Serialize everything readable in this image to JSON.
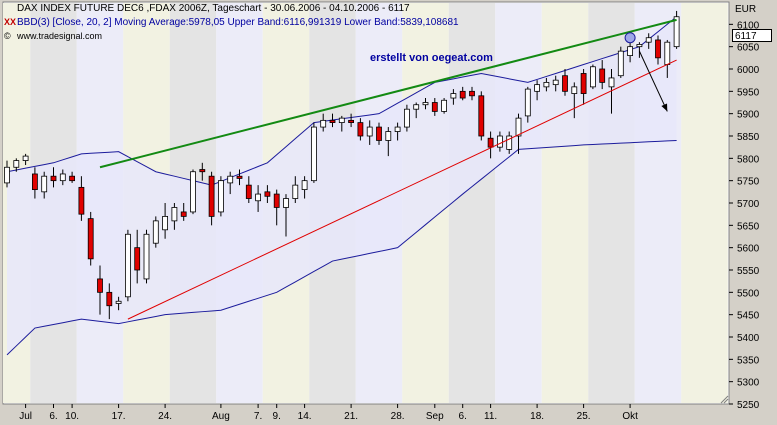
{
  "header": {
    "title": "DAX INDEX FUTURE DEC6 ,FDAX 2006Z, Tageschart - 30.06.2006 - 04.10.2006 - 6117",
    "indicator_mark": "XX",
    "indicator": "BBD(3) [Close, 20, 2] Moving Average:5978,05 Upper Band:6116,991319 Lower Band:5839,108681",
    "website": "www.tradesignal.com",
    "website_icon": "©"
  },
  "annotation": "erstellt von oegeat.com",
  "currency": "EUR",
  "last_price": "6117",
  "colors": {
    "bg_plot": "#ffffff",
    "band_fill": "#e8e8fa",
    "band_line": "#1c1c9c",
    "up_candle": "#ffffff",
    "down_candle": "#e00000",
    "trend_green": "#138a13",
    "trend_red": "#e00000",
    "arrow": "#000000",
    "stripe_yellow": "#f2f2e2",
    "stripe_gray": "#e4e4e4",
    "stripe_blue": "#ececf8"
  },
  "chart_data": {
    "type": "candlestick",
    "title": "DAX INDEX FUTURE DEC6 ,FDAX 2006Z, Tageschart - 30.06.2006 - 04.10.2006 - 6117",
    "ylabel": "EUR",
    "ylim": [
      5250,
      6150
    ],
    "y_ticks": [
      5250,
      5300,
      5350,
      5400,
      5450,
      5500,
      5550,
      5600,
      5650,
      5700,
      5750,
      5800,
      5850,
      5900,
      5950,
      6000,
      6050,
      6100
    ],
    "x_tick_labels": [
      {
        "label": "Jul",
        "bar": 2
      },
      {
        "label": "6.",
        "bar": 5
      },
      {
        "label": "10.",
        "bar": 7
      },
      {
        "label": "17.",
        "bar": 12
      },
      {
        "label": "24.",
        "bar": 17
      },
      {
        "label": "Aug",
        "bar": 23
      },
      {
        "label": "7.",
        "bar": 27
      },
      {
        "label": "9.",
        "bar": 29
      },
      {
        "label": "14.",
        "bar": 32
      },
      {
        "label": "21.",
        "bar": 37
      },
      {
        "label": "28.",
        "bar": 42
      },
      {
        "label": "Sep",
        "bar": 46
      },
      {
        "label": "6.",
        "bar": 49
      },
      {
        "label": "11.",
        "bar": 52
      },
      {
        "label": "18.",
        "bar": 57
      },
      {
        "label": "25.",
        "bar": 62
      },
      {
        "label": "Okt",
        "bar": 67
      }
    ],
    "grid": false,
    "candles": [
      {
        "o": 5745,
        "h": 5795,
        "l": 5735,
        "c": 5780
      },
      {
        "o": 5780,
        "h": 5800,
        "l": 5770,
        "c": 5795
      },
      {
        "o": 5795,
        "h": 5810,
        "l": 5785,
        "c": 5805
      },
      {
        "o": 5765,
        "h": 5780,
        "l": 5710,
        "c": 5730
      },
      {
        "o": 5725,
        "h": 5770,
        "l": 5710,
        "c": 5760
      },
      {
        "o": 5760,
        "h": 5780,
        "l": 5735,
        "c": 5750
      },
      {
        "o": 5750,
        "h": 5775,
        "l": 5740,
        "c": 5765
      },
      {
        "o": 5760,
        "h": 5770,
        "l": 5745,
        "c": 5750
      },
      {
        "o": 5735,
        "h": 5760,
        "l": 5660,
        "c": 5675
      },
      {
        "o": 5665,
        "h": 5680,
        "l": 5560,
        "c": 5575
      },
      {
        "o": 5530,
        "h": 5560,
        "l": 5450,
        "c": 5500
      },
      {
        "o": 5500,
        "h": 5520,
        "l": 5440,
        "c": 5470
      },
      {
        "o": 5475,
        "h": 5490,
        "l": 5460,
        "c": 5480
      },
      {
        "o": 5490,
        "h": 5640,
        "l": 5480,
        "c": 5630
      },
      {
        "o": 5600,
        "h": 5640,
        "l": 5520,
        "c": 5550
      },
      {
        "o": 5530,
        "h": 5640,
        "l": 5520,
        "c": 5630
      },
      {
        "o": 5610,
        "h": 5670,
        "l": 5600,
        "c": 5660
      },
      {
        "o": 5640,
        "h": 5700,
        "l": 5620,
        "c": 5670
      },
      {
        "o": 5660,
        "h": 5700,
        "l": 5640,
        "c": 5690
      },
      {
        "o": 5680,
        "h": 5700,
        "l": 5660,
        "c": 5670
      },
      {
        "o": 5680,
        "h": 5775,
        "l": 5675,
        "c": 5770
      },
      {
        "o": 5775,
        "h": 5790,
        "l": 5750,
        "c": 5770
      },
      {
        "o": 5760,
        "h": 5770,
        "l": 5650,
        "c": 5670
      },
      {
        "o": 5680,
        "h": 5760,
        "l": 5670,
        "c": 5750
      },
      {
        "o": 5745,
        "h": 5770,
        "l": 5720,
        "c": 5760
      },
      {
        "o": 5760,
        "h": 5775,
        "l": 5740,
        "c": 5755
      },
      {
        "o": 5740,
        "h": 5760,
        "l": 5700,
        "c": 5710
      },
      {
        "o": 5705,
        "h": 5740,
        "l": 5680,
        "c": 5720
      },
      {
        "o": 5725,
        "h": 5740,
        "l": 5700,
        "c": 5715
      },
      {
        "o": 5720,
        "h": 5730,
        "l": 5650,
        "c": 5690
      },
      {
        "o": 5690,
        "h": 5720,
        "l": 5625,
        "c": 5710
      },
      {
        "o": 5710,
        "h": 5760,
        "l": 5700,
        "c": 5740
      },
      {
        "o": 5730,
        "h": 5760,
        "l": 5710,
        "c": 5750
      },
      {
        "o": 5750,
        "h": 5880,
        "l": 5745,
        "c": 5870
      },
      {
        "o": 5870,
        "h": 5900,
        "l": 5860,
        "c": 5885
      },
      {
        "o": 5885,
        "h": 5900,
        "l": 5870,
        "c": 5880
      },
      {
        "o": 5880,
        "h": 5895,
        "l": 5860,
        "c": 5890
      },
      {
        "o": 5885,
        "h": 5900,
        "l": 5870,
        "c": 5880
      },
      {
        "o": 5880,
        "h": 5890,
        "l": 5840,
        "c": 5850
      },
      {
        "o": 5850,
        "h": 5885,
        "l": 5830,
        "c": 5870
      },
      {
        "o": 5870,
        "h": 5880,
        "l": 5830,
        "c": 5840
      },
      {
        "o": 5840,
        "h": 5870,
        "l": 5805,
        "c": 5860
      },
      {
        "o": 5860,
        "h": 5880,
        "l": 5840,
        "c": 5870
      },
      {
        "o": 5870,
        "h": 5920,
        "l": 5860,
        "c": 5910
      },
      {
        "o": 5910,
        "h": 5925,
        "l": 5890,
        "c": 5920
      },
      {
        "o": 5920,
        "h": 5935,
        "l": 5910,
        "c": 5925
      },
      {
        "o": 5925,
        "h": 5935,
        "l": 5895,
        "c": 5905
      },
      {
        "o": 5905,
        "h": 5935,
        "l": 5900,
        "c": 5930
      },
      {
        "o": 5935,
        "h": 5955,
        "l": 5920,
        "c": 5945
      },
      {
        "o": 5950,
        "h": 5960,
        "l": 5930,
        "c": 5935
      },
      {
        "o": 5950,
        "h": 5960,
        "l": 5930,
        "c": 5940
      },
      {
        "o": 5940,
        "h": 5950,
        "l": 5840,
        "c": 5850
      },
      {
        "o": 5845,
        "h": 5860,
        "l": 5800,
        "c": 5825
      },
      {
        "o": 5825,
        "h": 5860,
        "l": 5815,
        "c": 5850
      },
      {
        "o": 5820,
        "h": 5860,
        "l": 5810,
        "c": 5850
      },
      {
        "o": 5850,
        "h": 5900,
        "l": 5810,
        "c": 5890
      },
      {
        "o": 5895,
        "h": 5960,
        "l": 5880,
        "c": 5955
      },
      {
        "o": 5950,
        "h": 5975,
        "l": 5930,
        "c": 5965
      },
      {
        "o": 5960,
        "h": 5980,
        "l": 5950,
        "c": 5970
      },
      {
        "o": 5965,
        "h": 5985,
        "l": 5950,
        "c": 5975
      },
      {
        "o": 5985,
        "h": 6000,
        "l": 5940,
        "c": 5950
      },
      {
        "o": 5945,
        "h": 5970,
        "l": 5890,
        "c": 5960
      },
      {
        "o": 5990,
        "h": 6000,
        "l": 5920,
        "c": 5945
      },
      {
        "o": 5960,
        "h": 6010,
        "l": 5955,
        "c": 6005
      },
      {
        "o": 6000,
        "h": 6020,
        "l": 5955,
        "c": 5970
      },
      {
        "o": 5960,
        "h": 6000,
        "l": 5900,
        "c": 5980
      },
      {
        "o": 5985,
        "h": 6050,
        "l": 5980,
        "c": 6040
      },
      {
        "o": 6030,
        "h": 6060,
        "l": 6015,
        "c": 6050
      },
      {
        "o": 6050,
        "h": 6060,
        "l": 6025,
        "c": 6055
      },
      {
        "o": 6060,
        "h": 6080,
        "l": 6045,
        "c": 6070
      },
      {
        "o": 6065,
        "h": 6075,
        "l": 6010,
        "c": 6025
      },
      {
        "o": 6010,
        "h": 6065,
        "l": 5980,
        "c": 6060
      },
      {
        "o": 6050,
        "h": 6130,
        "l": 6045,
        "c": 6117
      }
    ],
    "bollinger": {
      "upper": [
        {
          "bar": 0,
          "v": 5770
        },
        {
          "bar": 5,
          "v": 5790
        },
        {
          "bar": 8,
          "v": 5810
        },
        {
          "bar": 12,
          "v": 5815
        },
        {
          "bar": 16,
          "v": 5770
        },
        {
          "bar": 22,
          "v": 5740
        },
        {
          "bar": 28,
          "v": 5790
        },
        {
          "bar": 33,
          "v": 5880
        },
        {
          "bar": 40,
          "v": 5900
        },
        {
          "bar": 46,
          "v": 5970
        },
        {
          "bar": 51,
          "v": 5990
        },
        {
          "bar": 56,
          "v": 5970
        },
        {
          "bar": 62,
          "v": 6010
        },
        {
          "bar": 68,
          "v": 6050
        },
        {
          "bar": 72,
          "v": 6117
        }
      ],
      "lower": [
        {
          "bar": 0,
          "v": 5360
        },
        {
          "bar": 3,
          "v": 5420
        },
        {
          "bar": 8,
          "v": 5440
        },
        {
          "bar": 12,
          "v": 5430
        },
        {
          "bar": 17,
          "v": 5450
        },
        {
          "bar": 23,
          "v": 5460
        },
        {
          "bar": 29,
          "v": 5500
        },
        {
          "bar": 35,
          "v": 5570
        },
        {
          "bar": 42,
          "v": 5600
        },
        {
          "bar": 49,
          "v": 5720
        },
        {
          "bar": 55,
          "v": 5820
        },
        {
          "bar": 62,
          "v": 5830
        },
        {
          "bar": 67,
          "v": 5835
        },
        {
          "bar": 72,
          "v": 5840
        }
      ]
    },
    "trendlines": [
      {
        "name": "green",
        "from": {
          "bar": 10,
          "v": 5780
        },
        "to": {
          "bar": 72,
          "v": 6110
        }
      },
      {
        "name": "red",
        "from": {
          "bar": 13,
          "v": 5440
        },
        "to": {
          "bar": 72,
          "v": 6020
        }
      }
    ],
    "arrows": [
      {
        "from": {
          "bar": 68,
          "v": 6040
        },
        "to": {
          "bar": 71,
          "v": 5905
        }
      },
      {
        "from": {
          "bar": 71,
          "v": 5905
        },
        "to": {
          "bar": 73,
          "v": 5895
        }
      }
    ]
  }
}
